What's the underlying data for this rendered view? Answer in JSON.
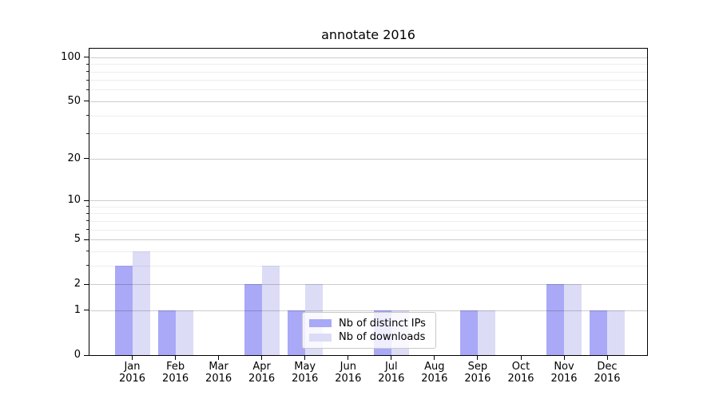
{
  "chart_data": {
    "type": "bar",
    "title": "annotate 2016",
    "categories": [
      "Jan 2016",
      "Feb 2016",
      "Mar 2016",
      "Apr 2016",
      "May 2016",
      "Jun 2016",
      "Jul 2016",
      "Aug 2016",
      "Sep 2016",
      "Oct 2016",
      "Nov 2016",
      "Dec 2016"
    ],
    "series": [
      {
        "name": "Nb of distinct IPs",
        "color": "#a9a9f7",
        "values": [
          3,
          1,
          0,
          2,
          1,
          0,
          1,
          0,
          1,
          0,
          2,
          1
        ]
      },
      {
        "name": "Nb of downloads",
        "color": "#dcdcf7",
        "values": [
          4,
          1,
          0,
          3,
          2,
          0,
          1,
          0,
          1,
          0,
          2,
          1
        ]
      }
    ],
    "xlabel": "",
    "ylabel": "",
    "yscale": "log1p",
    "ylim": [
      0,
      115
    ],
    "yticks_major": [
      0,
      1,
      2,
      5,
      10,
      20,
      50,
      100
    ],
    "yticks_minor": [
      3,
      4,
      6,
      7,
      8,
      9,
      30,
      40,
      60,
      70,
      80,
      90
    ],
    "grid": "both",
    "legend_position": "lower center"
  },
  "colors": {
    "bar_distinct_ips": "#a9a9f7",
    "bar_downloads": "#dcdcf7",
    "grid_major": "rgba(0,0,0,0.20)",
    "grid_minor": "rgba(0,0,0,0.07)",
    "spine": "#000000",
    "text": "#000000",
    "legend_border": "#c9c9c9"
  }
}
